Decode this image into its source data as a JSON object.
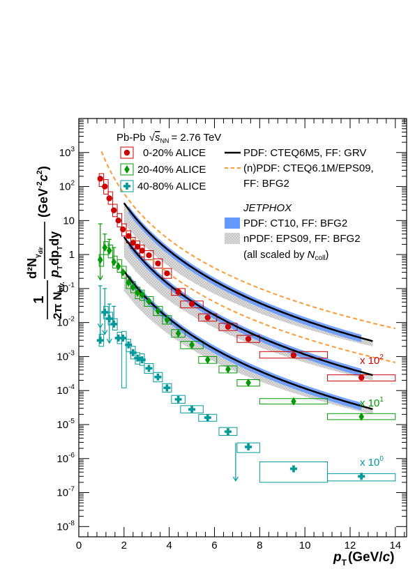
{
  "chart_data": {
    "type": "scatter",
    "title": "",
    "xlabel": "p_T (GeV/c)",
    "ylabel": "(1/2π N_ev.) d²N_γdir / (p_T dp_T dy) (GeV⁻² c²)",
    "x_axis": {
      "label_main": "p",
      "label_sub": "T",
      "label_unit": "(GeV/",
      "label_unit_italic": "c",
      "label_unit_close": ")",
      "range": [
        0,
        14.5
      ],
      "ticks": [
        0,
        2,
        4,
        6,
        8,
        10,
        12,
        14
      ],
      "tick_labels": [
        "0",
        "2",
        "4",
        "6",
        "8",
        "10",
        "12",
        "14"
      ]
    },
    "y_axis": {
      "scale": "log",
      "range": [
        5e-09,
        10000.0
      ],
      "ticks": [
        1e-08,
        1e-07,
        1e-06,
        1e-05,
        0.0001,
        0.001,
        0.01,
        0.1,
        1,
        10,
        100,
        1000
      ],
      "tick_base": "10",
      "tick_exponents": [
        "-8",
        "-7",
        "-6",
        "-5",
        "-4",
        "-3",
        "-2",
        "-1",
        "",
        "1",
        "2",
        "3"
      ],
      "tick_labels_plain": [
        "",
        "",
        "",
        "",
        "",
        "",
        "",
        "",
        "1",
        "10",
        "",
        ""
      ],
      "label_frac_num": "1",
      "label_frac_den": "2π N",
      "label_frac_den_sub": "ev.",
      "label_main": "d²N",
      "label_main_sub": "γ",
      "label_main_subsub": "dir",
      "label_main_den": "p",
      "label_main_den_rest": "dp",
      "label_main_den_dy": "dy",
      "label_main_den_sub": "T",
      "label_unit": "(GeV",
      "label_unit_exp1": "-2",
      "label_unit_c": "c",
      "label_unit_exp2": "2",
      "label_unit_close": ")"
    },
    "legend_header": {
      "system": "Pb-Pb",
      "sqrt_sym": "√",
      "energy_var": "s",
      "energy_sub": "NN",
      "energy_value": "= 2.76 TeV"
    },
    "series": [
      {
        "name": "0-20% ALICE",
        "color": "#cc0000",
        "marker": "circle",
        "scale_label": "x 10",
        "scale_exp": "2",
        "points": [
          {
            "x": 0.95,
            "y": 170,
            "xlo": 0.9,
            "xhi": 1.1,
            "ylo": 100,
            "yhi": 240
          },
          {
            "x": 1.15,
            "y": 100,
            "xlo": 1.1,
            "xhi": 1.3,
            "ylo": 60,
            "yhi": 160
          },
          {
            "x": 1.35,
            "y": 45,
            "xlo": 1.3,
            "xhi": 1.5,
            "ylo": 30,
            "yhi": 70
          },
          {
            "x": 1.55,
            "y": 20,
            "xlo": 1.5,
            "xhi": 1.7,
            "ylo": 13,
            "yhi": 30
          },
          {
            "x": 1.75,
            "y": 10,
            "xlo": 1.7,
            "xhi": 1.9,
            "ylo": 6.5,
            "yhi": 16
          },
          {
            "x": 1.95,
            "y": 5.5,
            "xlo": 1.9,
            "xhi": 2.1,
            "ylo": 3.5,
            "yhi": 8
          },
          {
            "x": 2.2,
            "y": 3.5,
            "xlo": 2.1,
            "xhi": 2.3,
            "ylo": 2.2,
            "yhi": 5
          },
          {
            "x": 2.4,
            "y": 2.2,
            "xlo": 2.3,
            "xhi": 2.5,
            "ylo": 1.5,
            "yhi": 3.2
          },
          {
            "x": 2.6,
            "y": 1.7,
            "xlo": 2.5,
            "xhi": 2.7,
            "ylo": 1.1,
            "yhi": 2.5
          },
          {
            "x": 2.8,
            "y": 1.3,
            "xlo": 2.7,
            "xhi": 2.9,
            "ylo": 0.85,
            "yhi": 1.9
          },
          {
            "x": 3.1,
            "y": 0.95,
            "xlo": 2.9,
            "xhi": 3.3,
            "ylo": 0.7,
            "yhi": 1.3
          },
          {
            "x": 3.5,
            "y": 0.55,
            "xlo": 3.3,
            "xhi": 3.7,
            "ylo": 0.4,
            "yhi": 0.75
          },
          {
            "x": 3.9,
            "y": 0.28,
            "xlo": 3.7,
            "xhi": 4.1,
            "ylo": 0.2,
            "yhi": 0.39
          },
          {
            "x": 4.4,
            "y": 0.08,
            "xlo": 4.1,
            "xhi": 4.7,
            "ylo": 0.063,
            "yhi": 0.1
          },
          {
            "x": 5.0,
            "y": 0.035,
            "xlo": 4.5,
            "xhi": 5.5,
            "ylo": 0.027,
            "yhi": 0.043
          },
          {
            "x": 5.7,
            "y": 0.014,
            "xlo": 5.3,
            "xhi": 6.1,
            "ylo": 0.011,
            "yhi": 0.018
          },
          {
            "x": 6.6,
            "y": 0.0075,
            "xlo": 6.2,
            "xhi": 7.0,
            "ylo": 0.0058,
            "yhi": 0.0095
          },
          {
            "x": 7.5,
            "y": 0.0033,
            "xlo": 7.0,
            "xhi": 8.0,
            "ylo": 0.0026,
            "yhi": 0.0042
          },
          {
            "x": 9.5,
            "y": 0.0011,
            "xlo": 8.0,
            "xhi": 11.0,
            "ylo": 0.0009,
            "yhi": 0.0014
          },
          {
            "x": 12.5,
            "y": 0.00024,
            "xlo": 11.0,
            "xhi": 14.0,
            "ylo": 0.00019,
            "yhi": 0.00029
          }
        ]
      },
      {
        "name": "20-40% ALICE",
        "color": "#009900",
        "marker": "diamond",
        "scale_label": "x 10",
        "scale_exp": "1",
        "points": [
          {
            "x": 0.95,
            "y": 0.7,
            "xlo": 0.9,
            "xhi": 1.1,
            "ylo": 0.45,
            "yhi": 1.0,
            "up": 8,
            "arrow": 0.18
          },
          {
            "x": 1.15,
            "y": 1.6,
            "xlo": 1.1,
            "xhi": 1.3,
            "ylo": 1.0,
            "yhi": 2.4,
            "up": 4
          },
          {
            "x": 1.35,
            "y": 1.3,
            "xlo": 1.3,
            "xhi": 1.5,
            "ylo": 0.8,
            "yhi": 1.9,
            "up": 2.8
          },
          {
            "x": 1.55,
            "y": 0.6,
            "xlo": 1.5,
            "xhi": 1.7,
            "ylo": 0.4,
            "yhi": 0.9,
            "up": 1.6
          },
          {
            "x": 1.75,
            "y": 0.45,
            "xlo": 1.7,
            "xhi": 1.9,
            "ylo": 0.3,
            "yhi": 0.7
          },
          {
            "x": 1.95,
            "y": 0.3,
            "xlo": 1.9,
            "xhi": 2.1,
            "ylo": 0.2,
            "yhi": 0.45
          },
          {
            "x": 2.2,
            "y": 0.15,
            "xlo": 2.1,
            "xhi": 2.3,
            "ylo": 0.1,
            "yhi": 0.22
          },
          {
            "x": 2.4,
            "y": 0.11,
            "xlo": 2.3,
            "xhi": 2.5,
            "ylo": 0.075,
            "yhi": 0.16
          },
          {
            "x": 2.6,
            "y": 0.075,
            "xlo": 2.5,
            "xhi": 2.7,
            "ylo": 0.05,
            "yhi": 0.11
          },
          {
            "x": 2.8,
            "y": 0.065,
            "xlo": 2.7,
            "xhi": 2.9,
            "ylo": 0.045,
            "yhi": 0.09
          },
          {
            "x": 3.1,
            "y": 0.042,
            "xlo": 2.9,
            "xhi": 3.3,
            "ylo": 0.03,
            "yhi": 0.058
          },
          {
            "x": 3.5,
            "y": 0.022,
            "xlo": 3.3,
            "xhi": 3.7,
            "ylo": 0.016,
            "yhi": 0.03
          },
          {
            "x": 3.9,
            "y": 0.012,
            "xlo": 3.7,
            "xhi": 4.1,
            "ylo": 0.009,
            "yhi": 0.016
          },
          {
            "x": 4.4,
            "y": 0.0048,
            "xlo": 4.1,
            "xhi": 4.7,
            "ylo": 0.0037,
            "yhi": 0.0062
          },
          {
            "x": 5.0,
            "y": 0.0022,
            "xlo": 4.5,
            "xhi": 5.5,
            "ylo": 0.0017,
            "yhi": 0.0028
          },
          {
            "x": 5.7,
            "y": 0.0008,
            "xlo": 5.3,
            "xhi": 6.1,
            "ylo": 0.00063,
            "yhi": 0.001
          },
          {
            "x": 6.6,
            "y": 0.00042,
            "xlo": 6.2,
            "xhi": 7.0,
            "ylo": 0.00033,
            "yhi": 0.00053
          },
          {
            "x": 7.5,
            "y": 0.00017,
            "xlo": 7.0,
            "xhi": 8.0,
            "ylo": 0.000135,
            "yhi": 0.00021
          },
          {
            "x": 9.5,
            "y": 4.8e-05,
            "xlo": 8.0,
            "xhi": 11.0,
            "ylo": 4e-05,
            "yhi": 5.8e-05
          },
          {
            "x": 12.5,
            "y": 1.7e-05,
            "xlo": 11.0,
            "xhi": 14.0,
            "ylo": 1.4e-05,
            "yhi": 2.1e-05
          }
        ]
      },
      {
        "name": "40-80% ALICE",
        "color": "#00999a",
        "marker": "cross",
        "scale_label": "x 10",
        "scale_exp": "0",
        "points": [
          {
            "x": 0.95,
            "y": 0.003,
            "xlo": 0.9,
            "xhi": 1.1,
            "ylo": 0.002,
            "yhi": 0.0045,
            "up": 0.12,
            "arrow": 0.007
          },
          {
            "x": 1.15,
            "y": 0.02,
            "xlo": 1.1,
            "xhi": 1.3,
            "ylo": 0.013,
            "yhi": 0.03,
            "up": 0.1,
            "arrow": 0.0045
          },
          {
            "x": 1.35,
            "y": 0.013,
            "xlo": 1.3,
            "xhi": 1.5,
            "ylo": 0.0085,
            "yhi": 0.02,
            "up": 0.035,
            "arrow": 0.0025
          },
          {
            "x": 1.55,
            "y": 0.009,
            "xlo": 1.5,
            "xhi": 1.7,
            "ylo": 0.006,
            "yhi": 0.013,
            "up": 0.03
          },
          {
            "x": 1.75,
            "y": 0.0035,
            "xlo": 1.7,
            "xhi": 1.9,
            "ylo": 0.0024,
            "yhi": 0.0052
          },
          {
            "x": 1.95,
            "y": 0.0035,
            "xlo": 1.9,
            "xhi": 2.1,
            "ylo": 0.00012,
            "yhi": 0.0055
          },
          {
            "x": 2.2,
            "y": 0.0022,
            "xlo": 2.1,
            "xhi": 2.3,
            "ylo": 0.0014,
            "yhi": 0.0032
          },
          {
            "x": 2.4,
            "y": 0.0013,
            "xlo": 2.3,
            "xhi": 2.5,
            "ylo": 0.00085,
            "yhi": 0.002
          },
          {
            "x": 2.6,
            "y": 0.0009,
            "xlo": 2.5,
            "xhi": 2.7,
            "ylo": 0.0006,
            "yhi": 0.0013
          },
          {
            "x": 2.8,
            "y": 0.0008,
            "xlo": 2.7,
            "xhi": 2.9,
            "ylo": 0.00055,
            "yhi": 0.0012
          },
          {
            "x": 3.1,
            "y": 0.00045,
            "xlo": 2.9,
            "xhi": 3.3,
            "ylo": 0.00032,
            "yhi": 0.00062
          },
          {
            "x": 3.5,
            "y": 0.00025,
            "xlo": 3.3,
            "xhi": 3.7,
            "ylo": 0.00018,
            "yhi": 0.00034
          },
          {
            "x": 3.9,
            "y": 0.00012,
            "xlo": 3.7,
            "xhi": 4.1,
            "ylo": 9e-05,
            "yhi": 0.00016
          },
          {
            "x": 4.4,
            "y": 5.5e-05,
            "xlo": 4.1,
            "xhi": 4.7,
            "ylo": 4.2e-05,
            "yhi": 7.2e-05
          },
          {
            "x": 5.0,
            "y": 2.8e-05,
            "xlo": 4.5,
            "xhi": 5.5,
            "ylo": 2.2e-05,
            "yhi": 3.6e-05
          },
          {
            "x": 5.7,
            "y": 1.6e-05,
            "xlo": 5.3,
            "xhi": 6.1,
            "ylo": 1.25e-05,
            "yhi": 2e-05
          },
          {
            "x": 6.6,
            "y": 6.2e-06,
            "xlo": 6.2,
            "xhi": 7.0,
            "ylo": 4.8e-06,
            "yhi": 8.2e-06
          },
          {
            "x": 7.5,
            "y": 2.2e-06,
            "xlo": 7.0,
            "xhi": 8.0,
            "ylo": 1.5e-06,
            "yhi": 2.9e-06,
            "down": 2.2e-07
          },
          {
            "x": 9.5,
            "y": 5e-07,
            "xlo": 8.0,
            "xhi": 11.0,
            "ylo": 2e-07,
            "yhi": 8e-07
          },
          {
            "x": 12.5,
            "y": 3e-07,
            "xlo": 11.0,
            "xhi": 14.0,
            "ylo": 2.2e-07,
            "yhi": 3.6e-07
          }
        ]
      }
    ],
    "theory": {
      "solid_label": "PDF: CTEQ6M5, FF: GRV",
      "dashed_label_1": "(n)PDF: CTEQ6.1M/EPS09,",
      "dashed_label_2": "FF: BFG2",
      "jetphox": "JETPHOX",
      "blue_label": "PDF: CT10, FF: BFG2",
      "gray_label": "nPDF: EPS09, FF: BFG2",
      "scaled_label": "(all scaled by",
      "scaled_sym": "N",
      "scaled_sub": "coll",
      "scaled_close": ")",
      "solid_color": "#000000",
      "dashed_color": "#ff9933",
      "blue_color": "#6699ff",
      "gray_color": "#c8c8c8"
    }
  }
}
